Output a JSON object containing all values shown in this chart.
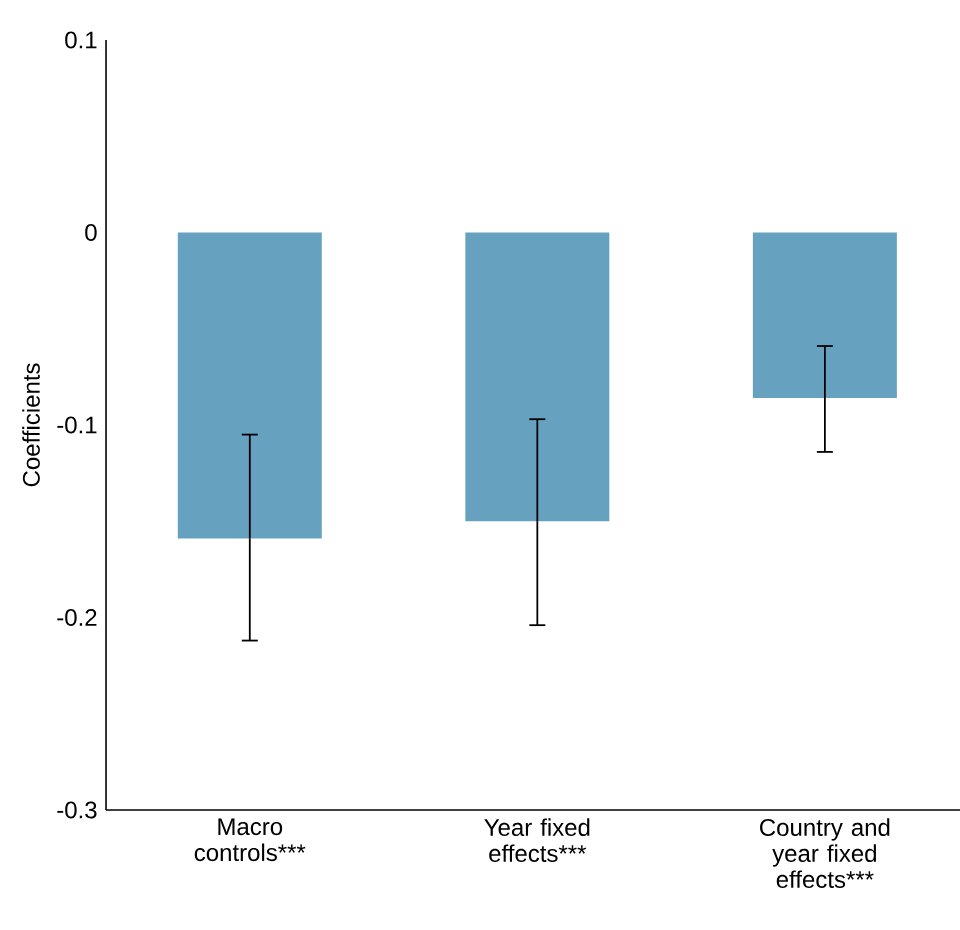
{
  "chart_data": {
    "type": "bar",
    "ylabel": "Coefficients",
    "categories": [
      "Macro controls***",
      "Year fixed effects***",
      "Country and year fixed effects***"
    ],
    "values": [
      -0.159,
      -0.15,
      -0.086
    ],
    "color": "#67a1c0",
    "errors": [
      [
        -0.212,
        -0.105
      ],
      [
        -0.204,
        -0.097
      ],
      [
        -0.114,
        -0.059
      ]
    ],
    "ylim": [
      -0.3,
      0.1
    ],
    "yticks": [
      -0.3,
      -0.2,
      -0.1,
      0,
      0.1
    ]
  }
}
